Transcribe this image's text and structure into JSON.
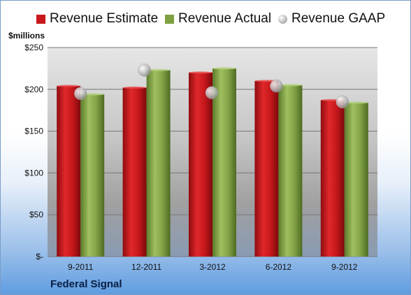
{
  "chart_data": {
    "type": "bar",
    "categories": [
      "9-2011",
      "12-2011",
      "3-2012",
      "6-2012",
      "9-2012"
    ],
    "series": [
      {
        "name": "Revenue Estimate",
        "kind": "bar",
        "color": "#c8181c",
        "values": [
          204,
          202,
          220,
          210,
          187
        ]
      },
      {
        "name": "Revenue Actual",
        "kind": "bar",
        "color": "#7ea040",
        "values": [
          194,
          223,
          225,
          205,
          184
        ]
      },
      {
        "name": "Revenue GAAP",
        "kind": "marker",
        "color": "#bdbdbd",
        "values": [
          195,
          223,
          196,
          204,
          185
        ]
      }
    ],
    "yticks": [
      "$-",
      "$50",
      "$100",
      "$150",
      "$200",
      "$250"
    ],
    "ytick_values": [
      0,
      50,
      100,
      150,
      200,
      250
    ],
    "ylim": [
      0,
      250
    ],
    "ylabel": "$millions",
    "xlabel": "",
    "title": "",
    "grid": true,
    "legend_position": "top"
  },
  "footer": {
    "company": "Federal Signal"
  }
}
